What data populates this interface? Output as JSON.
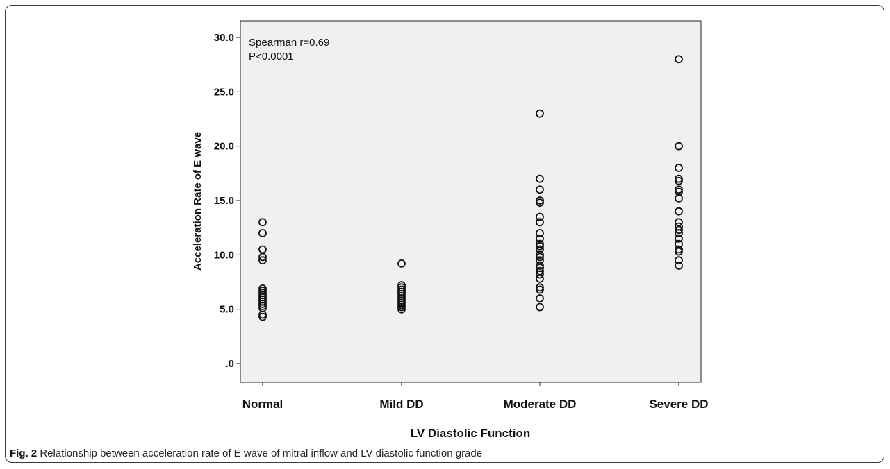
{
  "caption": {
    "label": "Fig. 2",
    "text": " Relationship between acceleration rate of E wave of mitral inflow and LV diastolic function grade"
  },
  "chart_data": {
    "type": "scatter",
    "xlabel": "LV Diastolic Function",
    "ylabel": "Acceleration Rate of E wave",
    "categories": [
      "Normal",
      "Mild DD",
      "Moderate DD",
      "Severe DD"
    ],
    "yticks": [
      ".0",
      "5.0",
      "10.0",
      "15.0",
      "20.0",
      "25.0",
      "30.0"
    ],
    "ylim": [
      0,
      30
    ],
    "grid": false,
    "annotations": [
      "Spearman r=0.69",
      "P<0.0001"
    ],
    "series": [
      {
        "category": "Normal",
        "values": [
          13.0,
          12.0,
          10.5,
          9.8,
          9.5,
          6.9,
          6.7,
          6.5,
          6.3,
          6.1,
          5.9,
          5.7,
          5.5,
          5.3,
          5.1,
          4.5,
          4.3
        ]
      },
      {
        "category": "Mild DD",
        "values": [
          9.2,
          7.2,
          7.0,
          6.8,
          6.6,
          6.4,
          6.2,
          6.0,
          5.8,
          5.6,
          5.4,
          5.2,
          5.0
        ]
      },
      {
        "category": "Moderate DD",
        "values": [
          23.0,
          17.0,
          16.0,
          15.0,
          14.8,
          13.5,
          13.0,
          12.0,
          11.5,
          11.0,
          10.8,
          10.5,
          10.0,
          9.8,
          9.5,
          9.0,
          8.8,
          8.5,
          8.2,
          7.8,
          7.0,
          6.8,
          6.0,
          5.2
        ]
      },
      {
        "category": "Severe DD",
        "values": [
          28.0,
          20.0,
          18.0,
          17.0,
          16.8,
          16.0,
          15.8,
          15.2,
          14.0,
          13.0,
          12.6,
          12.3,
          12.0,
          11.5,
          11.0,
          10.5,
          10.3,
          9.5,
          9.0
        ]
      }
    ]
  }
}
